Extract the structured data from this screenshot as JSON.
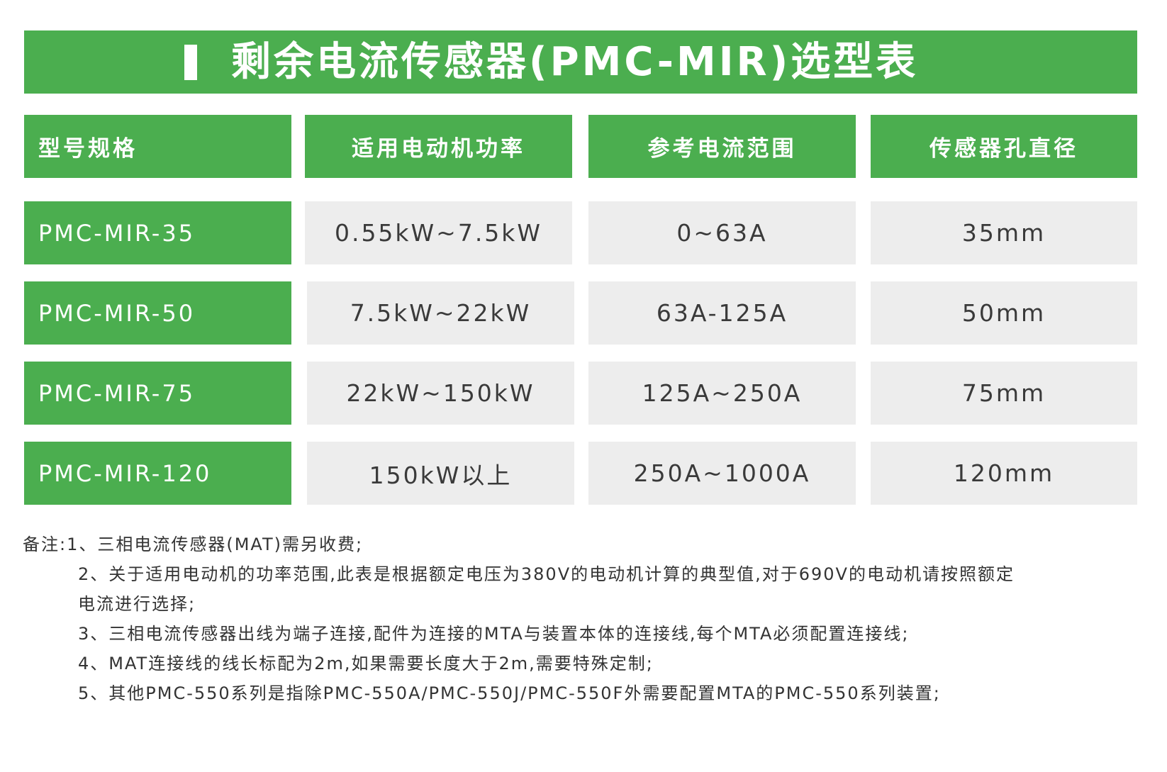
{
  "title": "剩余电流传感器(PMC-MIR)选型表",
  "table": {
    "headers": [
      "型号规格",
      "适用电动机功率",
      "参考电流范围",
      "传感器孔直径"
    ],
    "rows": [
      {
        "model": "PMC-MIR-35",
        "power": "0.55kW~7.5kW",
        "current": "0~63A",
        "hole": "35mm"
      },
      {
        "model": "PMC-MIR-50",
        "power": "7.5kW~22kW",
        "current": "63A-125A",
        "hole": "50mm"
      },
      {
        "model": "PMC-MIR-75",
        "power": "22kW~150kW",
        "current": "125A~250A",
        "hole": "75mm"
      },
      {
        "model": "PMC-MIR-120",
        "power": "150kW以上",
        "current": "250A~1000A",
        "hole": "120mm"
      }
    ]
  },
  "notes": {
    "line1": "备注:1、三相电流传感器(MAT)需另收费;",
    "line2a": "2、关于适用电动机的功率范围,此表是根据额定电压为380V的电动机计算的典型值,对于690V的电动机请按照额定",
    "line2b": "电流进行选择;",
    "line3": "3、三相电流传感器出线为端子连接,配件为连接的MTA与装置本体的连接线,每个MTA必须配置连接线;",
    "line4": "4、MAT连接线的线长标配为2m,如果需要长度大于2m,需要特殊定制;",
    "line5": "5、其他PMC-550系列是指除PMC-550A/PMC-550J/PMC-550F外需要配置MTA的PMC-550系列装置;"
  },
  "colors": {
    "green": "#4bae4f",
    "cell_gray": "#ededed"
  }
}
